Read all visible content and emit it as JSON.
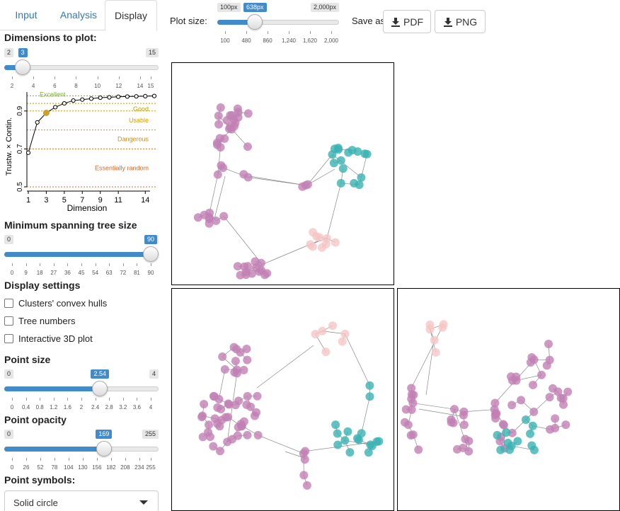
{
  "tabs": [
    {
      "label": "Input",
      "active": false
    },
    {
      "label": "Analysis",
      "active": false
    },
    {
      "label": "Display",
      "active": true
    }
  ],
  "dimensions": {
    "title": "Dimensions to plot:",
    "min": "2",
    "max": "15",
    "value": "3",
    "value_num": 3,
    "min_num": 2,
    "max_num": 15,
    "ticks": [
      "2",
      "4",
      "6",
      "8",
      "10",
      "12",
      "14",
      "15"
    ]
  },
  "quality_chart": {
    "ylabel": "Trustw. × Contin.",
    "xlabel": "Dimension",
    "yticks": [
      "0.5",
      "0.7",
      "0.9"
    ],
    "xticks": [
      "1",
      "3",
      "5",
      "7",
      "9",
      "11",
      "14"
    ],
    "bands": [
      "Excellent",
      "Good",
      "Usable",
      "Dangerous",
      "Essentially random"
    ],
    "colors": {
      "excellent": "#7ab317",
      "good": "#b8a000",
      "usable": "#d4a000",
      "dangerous": "#d98a18",
      "random": "#e06a20",
      "highlight": "#c9a227"
    }
  },
  "chart_data": {
    "type": "line",
    "x": [
      1,
      2,
      3,
      4,
      5,
      6,
      7,
      8,
      9,
      10,
      11,
      12,
      13,
      14,
      15
    ],
    "values": [
      0.68,
      0.84,
      0.89,
      0.92,
      0.94,
      0.955,
      0.96,
      0.965,
      0.97,
      0.972,
      0.975,
      0.976,
      0.977,
      0.978,
      0.979
    ],
    "highlight_x": 3,
    "xlabel": "Dimension",
    "ylabel": "Trustw. × Contin.",
    "ylim": [
      0.5,
      1.0
    ],
    "xlim": [
      1,
      15
    ],
    "thresholds": [
      {
        "label": "Excellent",
        "value": 0.98
      },
      {
        "label": "Good",
        "value": 0.94
      },
      {
        "label": "Usable",
        "value": 0.9
      },
      {
        "label": "Dangerous",
        "value": 0.8
      },
      {
        "label": "Essentially random",
        "value": 0.7
      },
      {
        "label": "",
        "value": 0.5
      }
    ]
  },
  "mst": {
    "title": "Minimum spanning tree size",
    "min": "0",
    "max": "90",
    "value": "90",
    "value_num": 90,
    "min_num": 0,
    "max_num": 90,
    "ticks": [
      "0",
      "9",
      "18",
      "27",
      "36",
      "45",
      "54",
      "63",
      "72",
      "81",
      "90"
    ]
  },
  "display_settings": {
    "title": "Display settings",
    "options": [
      "Clusters' convex hulls",
      "Tree numbers",
      "Interactive 3D plot"
    ]
  },
  "point_size": {
    "title": "Point size",
    "min": "0",
    "max": "4",
    "value": "2.54",
    "value_num": 2.54,
    "min_num": 0,
    "max_num": 4,
    "ticks": [
      "0",
      "0.4",
      "0.8",
      "1.2",
      "1.6",
      "2",
      "2.4",
      "2.8",
      "3.2",
      "3.6",
      "4"
    ]
  },
  "point_opacity": {
    "title": "Point opacity",
    "min": "0",
    "max": "255",
    "value": "169",
    "value_num": 169,
    "min_num": 0,
    "max_num": 255,
    "ticks": [
      "0",
      "26",
      "52",
      "78",
      "104",
      "130",
      "156",
      "182",
      "208",
      "234",
      "255"
    ]
  },
  "point_symbols": {
    "title": "Point symbols:",
    "selected": "Solid circle"
  },
  "plot_size": {
    "label": "Plot size:",
    "min": "100px",
    "max": "2,000px",
    "value": "638px",
    "value_num": 638,
    "min_num": 100,
    "max_num": 2000,
    "ticks": [
      "100",
      "480",
      "860",
      "1,240",
      "1,620",
      "2,000"
    ]
  },
  "save": {
    "label": "Save as:",
    "pdf": "PDF",
    "png": "PNG"
  },
  "colors": {
    "cluster_purple": "#c27fb4",
    "cluster_teal": "#3bb3b3",
    "cluster_pink": "#f6c6c6",
    "accent": "#428bca",
    "edge": "#888888"
  }
}
